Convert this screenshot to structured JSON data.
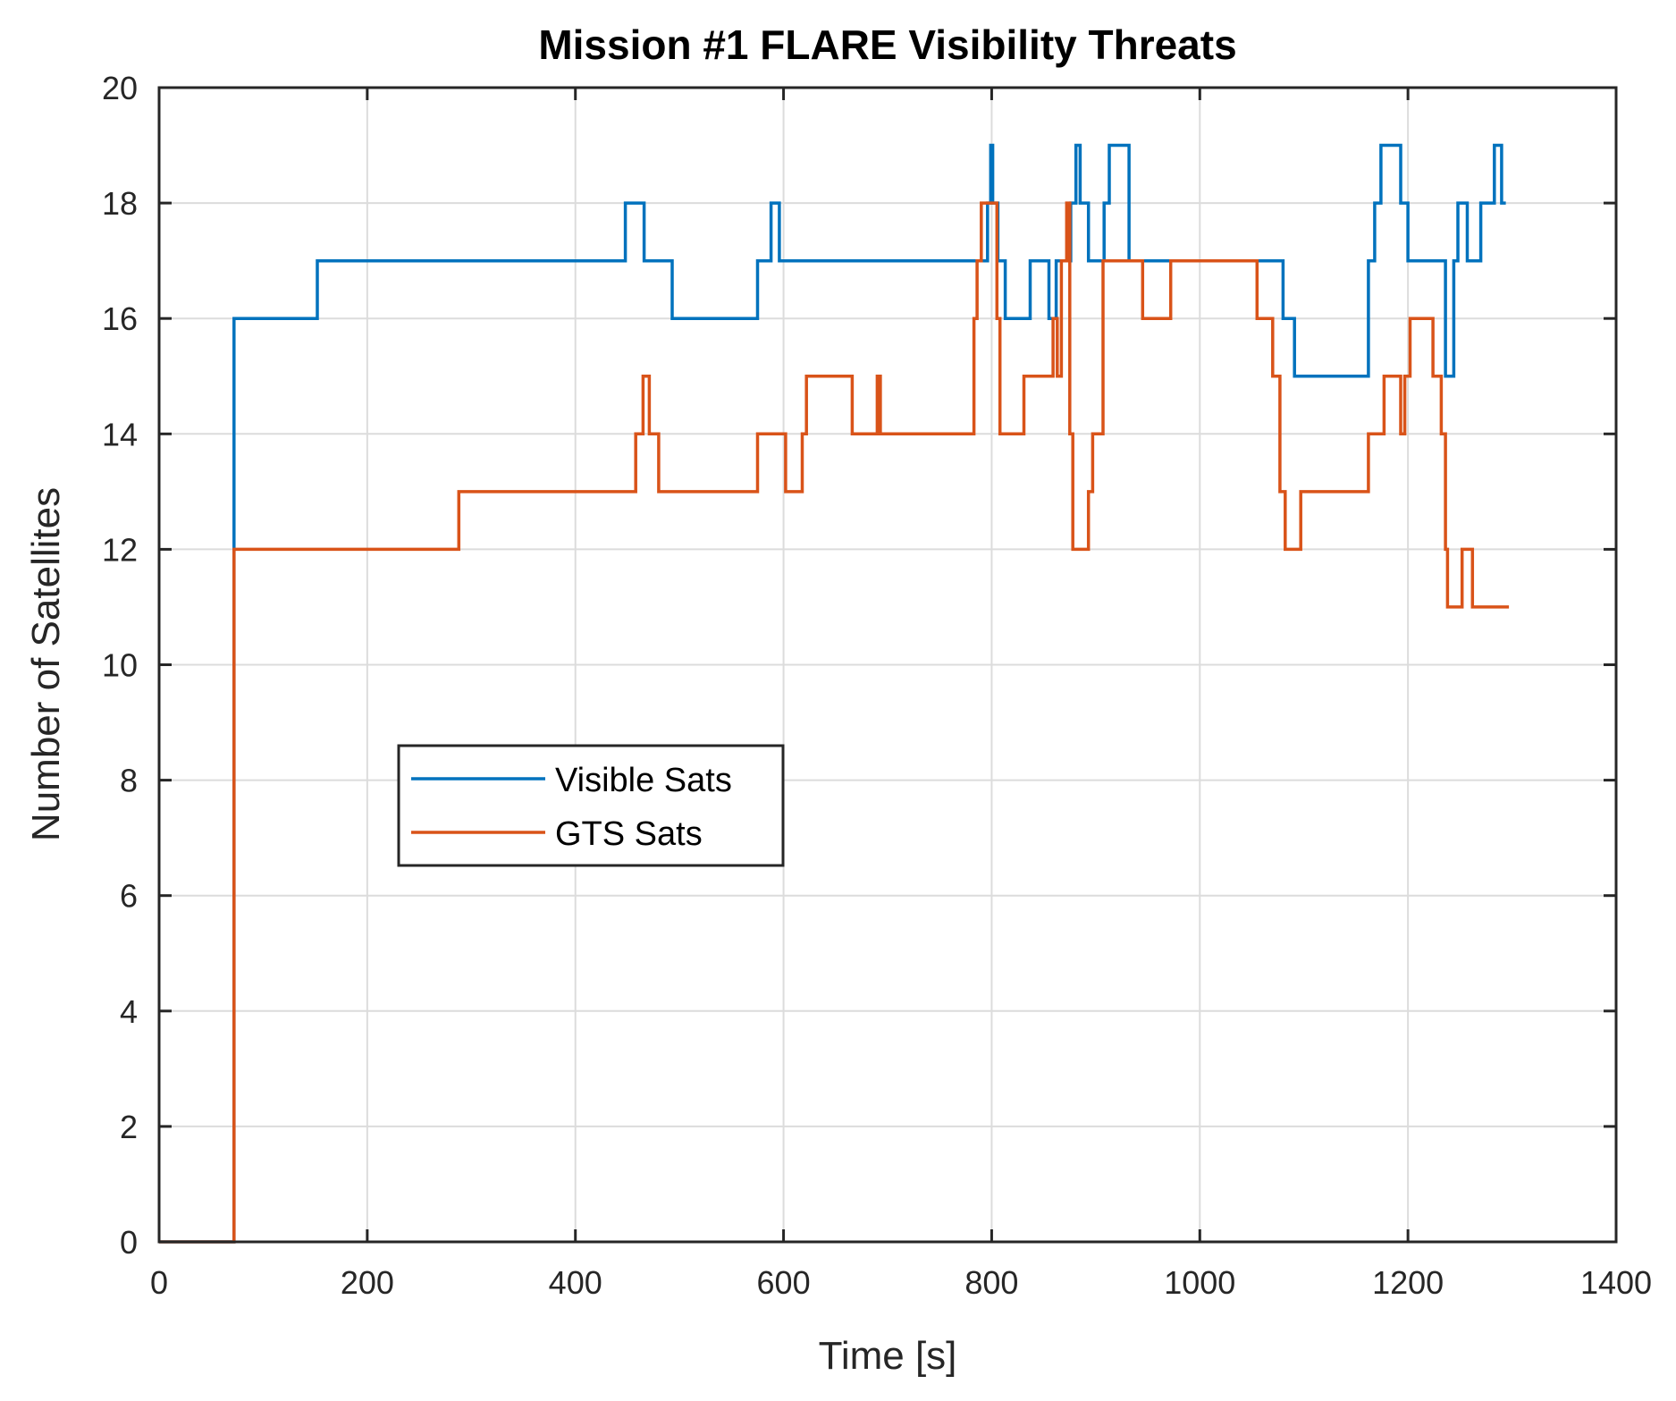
{
  "chart_data": {
    "type": "line",
    "title": "Mission #1 FLARE Visibility Threats",
    "xlabel": "Time [s]",
    "ylabel": "Number of Satellites",
    "xlim": [
      0,
      1400
    ],
    "ylim": [
      0,
      20
    ],
    "xticks": [
      0,
      200,
      400,
      600,
      800,
      1000,
      1200,
      1400
    ],
    "yticks": [
      0,
      2,
      4,
      6,
      8,
      10,
      12,
      14,
      16,
      18,
      20
    ],
    "grid": true,
    "legend_position": "center-left",
    "series": [
      {
        "name": "Visible Sats",
        "color": "#0072BD",
        "step": true,
        "x": [
          0,
          72,
          72,
          152,
          448,
          466,
          493,
          575,
          588,
          596,
          785,
          796,
          799,
          801,
          806,
          813,
          833,
          837,
          855,
          862,
          876,
          881,
          885,
          893,
          908,
          913,
          932,
          943,
          1052,
          1080,
          1091,
          1162,
          1168,
          1174,
          1193,
          1200,
          1228,
          1236,
          1244,
          1248,
          1257,
          1270,
          1283,
          1290,
          1294
        ],
        "y": [
          0,
          12,
          16,
          17,
          18,
          17,
          16,
          17,
          18,
          17,
          17,
          18,
          19,
          18,
          17,
          16,
          16,
          17,
          16,
          17,
          18,
          19,
          18,
          17,
          18,
          19,
          17,
          17,
          17,
          16,
          15,
          17,
          18,
          19,
          18,
          17,
          17,
          15,
          17,
          18,
          17,
          18,
          19,
          18,
          18
        ]
      },
      {
        "name": "GTS Sats",
        "color": "#D95319",
        "step": true,
        "x": [
          0,
          72,
          72,
          288,
          458,
          465,
          471,
          480,
          482,
          575,
          602,
          618,
          622,
          666,
          690,
          693,
          695,
          783,
          786,
          790,
          805,
          808,
          831,
          859,
          863,
          867,
          872,
          875,
          878,
          881,
          893,
          897,
          900,
          907,
          912,
          945,
          972,
          1055,
          1070,
          1077,
          1082,
          1097,
          1162,
          1177,
          1193,
          1197,
          1202,
          1209,
          1224,
          1232,
          1236,
          1238,
          1252,
          1262,
          1268,
          1297
        ],
        "y": [
          0,
          0,
          12,
          13,
          14,
          15,
          14,
          13,
          13,
          14,
          13,
          14,
          15,
          14,
          15,
          14,
          14,
          16,
          17,
          18,
          16,
          14,
          15,
          16,
          15,
          17,
          18,
          14,
          12,
          12,
          13,
          14,
          14,
          17,
          17,
          16,
          17,
          16,
          15,
          13,
          12,
          13,
          14,
          15,
          14,
          15,
          16,
          16,
          15,
          14,
          12,
          11,
          12,
          11,
          11,
          11
        ]
      }
    ]
  }
}
